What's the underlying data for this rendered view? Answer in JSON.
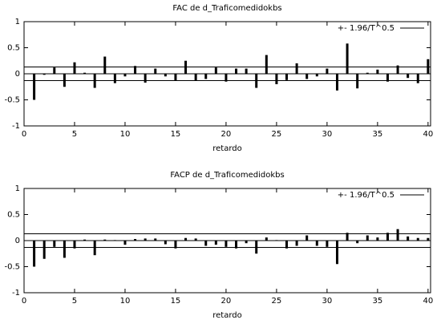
{
  "chart_data": [
    {
      "type": "bar",
      "title": "FAC de d_Traficomedidokbs",
      "x_label": "retardo",
      "x": [
        1,
        2,
        3,
        4,
        5,
        6,
        7,
        8,
        9,
        10,
        11,
        12,
        13,
        14,
        15,
        16,
        17,
        18,
        19,
        20,
        21,
        22,
        23,
        24,
        25,
        26,
        27,
        28,
        29,
        30,
        31,
        32,
        33,
        34,
        35,
        36,
        37,
        38,
        39,
        40
      ],
      "values": [
        -0.5,
        -0.02,
        0.12,
        -0.25,
        0.22,
        0.02,
        -0.27,
        0.33,
        -0.18,
        -0.05,
        0.15,
        -0.17,
        0.1,
        -0.05,
        -0.13,
        0.25,
        -0.13,
        -0.1,
        0.12,
        -0.15,
        0.1,
        0.1,
        -0.27,
        0.36,
        -0.2,
        -0.12,
        0.2,
        -0.1,
        -0.05,
        0.1,
        -0.32,
        0.58,
        -0.28,
        0.02,
        0.08,
        -0.15,
        0.16,
        -0.08,
        -0.18,
        0.28
      ],
      "color": "#000000",
      "band": {
        "name": "+- 1.96/T^0.5",
        "values": [
          -0.13,
          0.13
        ],
        "color": "#000000"
      },
      "xlim": [
        0,
        40.25
      ],
      "ylim": [
        -1,
        1
      ],
      "xticks": [
        0,
        5,
        10,
        15,
        20,
        25,
        30,
        35,
        40
      ],
      "yticks": [
        -1,
        -0.5,
        0,
        0.5,
        1
      ],
      "legend": "top-right"
    },
    {
      "type": "bar",
      "title": "FACP de d_Traficomedidokbs",
      "x_label": "retardo",
      "x": [
        1,
        2,
        3,
        4,
        5,
        6,
        7,
        8,
        9,
        10,
        11,
        12,
        13,
        14,
        15,
        16,
        17,
        18,
        19,
        20,
        21,
        22,
        23,
        24,
        25,
        26,
        27,
        28,
        29,
        30,
        31,
        32,
        33,
        34,
        35,
        36,
        37,
        38,
        39,
        40
      ],
      "values": [
        -0.5,
        -0.35,
        -0.12,
        -0.33,
        -0.15,
        0.02,
        -0.28,
        0.02,
        0.01,
        -0.08,
        0.03,
        0.04,
        0.04,
        -0.07,
        -0.15,
        0.05,
        0.04,
        -0.1,
        -0.08,
        -0.12,
        -0.15,
        -0.05,
        -0.25,
        0.06,
        0.01,
        -0.15,
        -0.1,
        0.1,
        -0.1,
        -0.12,
        -0.45,
        0.15,
        -0.05,
        0.1,
        0.06,
        0.15,
        0.22,
        0.08,
        0.05,
        0.05
      ],
      "color": "#000000",
      "band": {
        "name": "+- 1.96/T^0.5",
        "values": [
          -0.13,
          0.13
        ],
        "color": "#000000"
      },
      "xlim": [
        0,
        40.25
      ],
      "ylim": [
        -1,
        1
      ],
      "xticks": [
        0,
        5,
        10,
        15,
        20,
        25,
        30,
        35,
        40
      ],
      "yticks": [
        -1,
        -0.5,
        0,
        0.5,
        1
      ],
      "legend": "top-right"
    }
  ]
}
